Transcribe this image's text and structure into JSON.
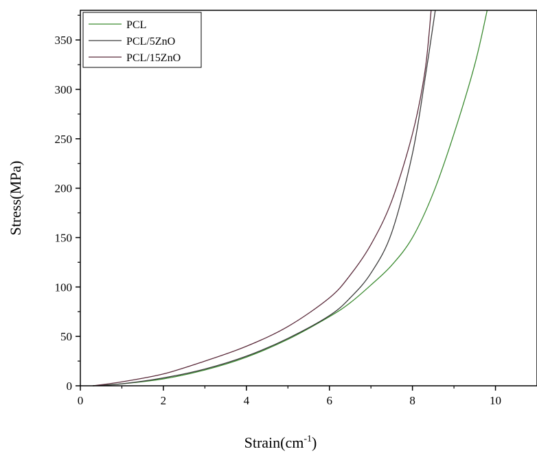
{
  "chart_data": {
    "type": "line",
    "title": "",
    "xlabel": {
      "base": "Strain(cm",
      "sup": "-1",
      "tail": ")"
    },
    "ylabel": "Stress(MPa)",
    "xlim": [
      0,
      11
    ],
    "ylim": [
      0,
      380
    ],
    "xticks": [
      0,
      2,
      4,
      6,
      8,
      10
    ],
    "xtick_labels": [
      "0",
      "2",
      "4",
      "6",
      "8",
      "10"
    ],
    "yticks": [
      0,
      50,
      100,
      150,
      200,
      250,
      300,
      350
    ],
    "ytick_labels": [
      "0",
      "50",
      "100",
      "150",
      "200",
      "250",
      "300",
      "350"
    ],
    "grid": false,
    "legend_position": "top-left",
    "series": [
      {
        "name": "PCL",
        "color": "#3a8a2f",
        "points": [
          [
            0.3,
            0
          ],
          [
            1,
            2
          ],
          [
            2,
            7
          ],
          [
            3,
            16
          ],
          [
            4,
            29
          ],
          [
            5,
            47
          ],
          [
            6,
            70
          ],
          [
            6.5,
            84
          ],
          [
            7,
            102
          ],
          [
            7.5,
            122
          ],
          [
            8,
            150
          ],
          [
            8.5,
            195
          ],
          [
            9,
            255
          ],
          [
            9.5,
            325
          ],
          [
            9.8,
            380
          ]
        ]
      },
      {
        "name": "PCL/5ZnO",
        "color": "#3a3a3a",
        "points": [
          [
            0.3,
            0
          ],
          [
            1,
            2
          ],
          [
            2,
            8
          ],
          [
            3,
            17
          ],
          [
            4,
            30
          ],
          [
            5,
            48
          ],
          [
            6,
            71
          ],
          [
            6.5,
            89
          ],
          [
            7,
            114
          ],
          [
            7.5,
            155
          ],
          [
            8,
            235
          ],
          [
            8.3,
            310
          ],
          [
            8.55,
            380
          ]
        ]
      },
      {
        "name": "PCL/15ZnO",
        "color": "#5a2a3a",
        "points": [
          [
            0.3,
            0
          ],
          [
            1,
            4
          ],
          [
            2,
            12
          ],
          [
            3,
            25
          ],
          [
            4,
            40
          ],
          [
            5,
            60
          ],
          [
            6,
            89
          ],
          [
            6.5,
            112
          ],
          [
            7,
            143
          ],
          [
            7.5,
            187
          ],
          [
            8,
            255
          ],
          [
            8.3,
            318
          ],
          [
            8.45,
            380
          ]
        ]
      }
    ]
  }
}
